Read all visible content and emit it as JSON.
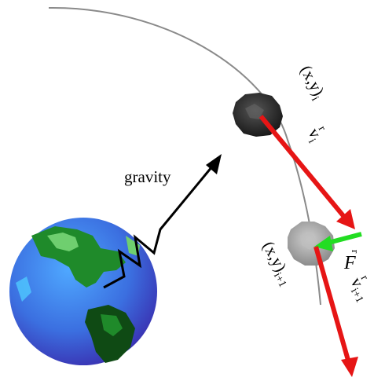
{
  "labels": {
    "gravity": "gravity",
    "pos_i": "(x,y)",
    "pos_i_sub": "i",
    "vel_i": "v",
    "vel_i_sub": "i",
    "vel_i_accent": "r",
    "force": "F",
    "force_accent": "r",
    "pos_next": "(x,y)",
    "pos_next_sub": "i+1",
    "vel_next": "v",
    "vel_next_sub": "i+1",
    "vel_next_accent": "r"
  },
  "colors": {
    "orbit": "#8a8a8a",
    "velocity": "#e61515",
    "force": "#22dd22",
    "gravity_arrow": "#000000",
    "ocean": "#3b6fe0",
    "ocean_dark": "#2a3fb0",
    "land": "#1f8a2a",
    "land_light": "#6fcf6f",
    "moon_dark": "#333333",
    "moon_light": "#a8a8a8"
  }
}
